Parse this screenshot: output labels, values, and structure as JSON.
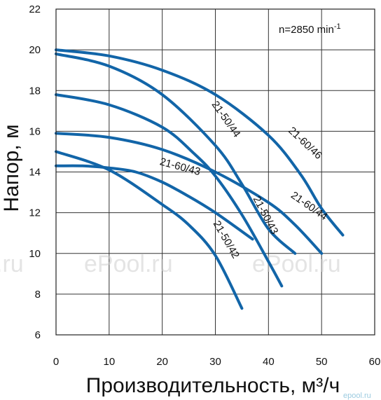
{
  "chart_data": {
    "type": "line",
    "xlabel": "Производительность, м³/ч",
    "ylabel": "Напор, м",
    "xlim": [
      0,
      60
    ],
    "ylim": [
      6,
      22
    ],
    "x_ticks": [
      0,
      10,
      20,
      30,
      40,
      50,
      60
    ],
    "y_ticks": [
      6,
      8,
      10,
      12,
      14,
      16,
      18,
      20,
      22
    ],
    "grid": true,
    "annotation": "n=2850 min",
    "annotation_sup": "-1",
    "line_color": "#1265a8",
    "series": [
      {
        "name": "21-60/46",
        "label_angle": 43,
        "x": [
          0,
          10,
          20,
          30,
          40,
          46,
          50,
          54
        ],
        "y": [
          20.0,
          19.7,
          19.0,
          17.8,
          15.8,
          13.9,
          12.2,
          10.9
        ]
      },
      {
        "name": "21-50/44",
        "label_angle": 55,
        "x": [
          0,
          10,
          20,
          30,
          35,
          40,
          45
        ],
        "y": [
          19.8,
          19.2,
          17.8,
          15.3,
          13.4,
          11.2,
          10.0
        ]
      },
      {
        "name": "21-60/44",
        "label_angle": 35,
        "x": [
          0,
          10,
          20,
          30,
          40,
          45,
          50
        ],
        "y": [
          15.9,
          15.7,
          15.1,
          14.0,
          12.5,
          11.4,
          10.0
        ]
      },
      {
        "name": "21-50/43",
        "label_angle": 62,
        "x": [
          0,
          10,
          20,
          26,
          30,
          35,
          40,
          42.5
        ],
        "y": [
          17.8,
          17.3,
          16.2,
          14.9,
          13.8,
          11.9,
          9.6,
          8.4
        ]
      },
      {
        "name": "21-60/43",
        "label_angle": 15,
        "x": [
          0,
          5,
          10,
          15,
          20,
          25,
          30,
          37
        ],
        "y": [
          14.3,
          14.3,
          14.2,
          14.0,
          13.5,
          12.8,
          12.0,
          10.7
        ]
      },
      {
        "name": "21-50/42",
        "label_angle": 60,
        "x": [
          0,
          10,
          20,
          25,
          30,
          35
        ],
        "y": [
          15.0,
          14.1,
          12.4,
          11.4,
          9.9,
          7.3
        ]
      }
    ]
  },
  "watermarks": [
    "ePool.ru",
    "ePool.ru",
    ".ru"
  ],
  "corner_mark": "epool.ru"
}
